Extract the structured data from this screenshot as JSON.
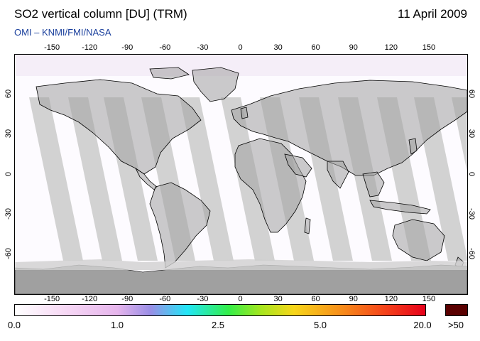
{
  "header": {
    "title": "SO2 vertical column [DU] (TRM)",
    "date": "11 April 2009",
    "subtitle": "OMI  –  KNMI/FMI/NASA"
  },
  "map": {
    "projection": "equirectangular",
    "lon_range": [
      -180,
      180
    ],
    "lat_range": [
      -90,
      90
    ],
    "lon_ticks": [
      "-150",
      "-120",
      "-90",
      "-60",
      "-30",
      "0",
      "30",
      "60",
      "90",
      "120",
      "150"
    ],
    "lat_ticks": [
      "60",
      "30",
      "0",
      "-30",
      "-60"
    ],
    "land_color": "#a0a0a0",
    "swath_color": "#d2d2d2",
    "background_color": "#fdfbff",
    "coastline_color": "#000000"
  },
  "colorbar": {
    "labels": [
      "0.0",
      "1.0",
      "2.5",
      "5.0",
      "20.0"
    ],
    "overflow_label": ">50",
    "overflow_color": "#5a0000"
  }
}
